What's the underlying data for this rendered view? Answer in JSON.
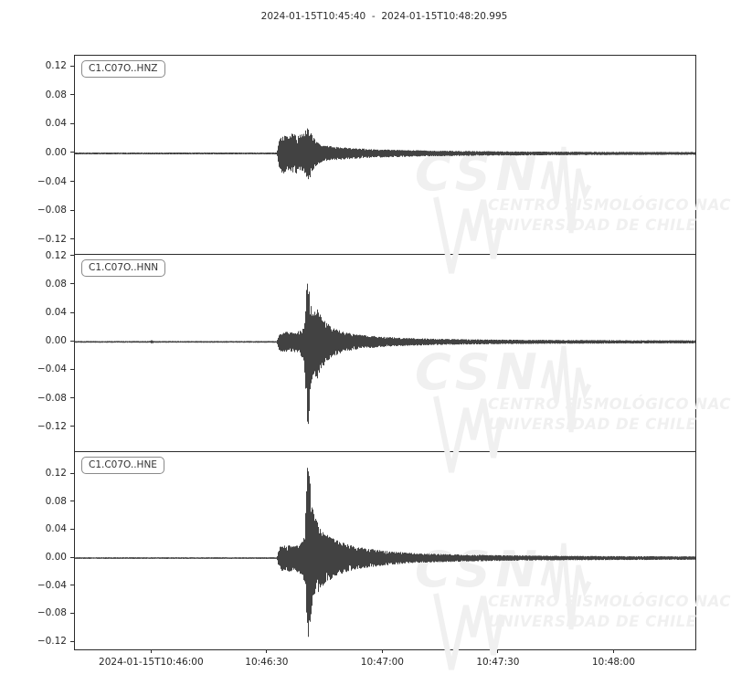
{
  "chart_data": {
    "type": "line",
    "kind": "seismogram-multitrace",
    "title": "2024-01-15T10:45:40  -  2024-01-15T10:48:20.995",
    "time_start": "2024-01-15T10:45:40",
    "time_end": "2024-01-15T10:48:20.995",
    "duration_seconds": 161,
    "trace_color": "#424242",
    "axis_color": "#2b2b2b",
    "grid": false,
    "x_ticks": [
      {
        "t": 20,
        "label": "2024-01-15T10:46:00"
      },
      {
        "t": 50,
        "label": "10:46:30"
      },
      {
        "t": 80,
        "label": "10:47:00"
      },
      {
        "t": 110,
        "label": "10:47:30"
      },
      {
        "t": 140,
        "label": "10:48:00"
      }
    ],
    "y_ticks": [
      {
        "value": 0.12,
        "label": "0.12"
      },
      {
        "value": 0.08,
        "label": "0.08"
      },
      {
        "value": 0.04,
        "label": "0.04"
      },
      {
        "value": 0.0,
        "label": "0.00"
      },
      {
        "value": -0.04,
        "label": "−0.04"
      },
      {
        "value": -0.08,
        "label": "−0.08"
      },
      {
        "value": -0.12,
        "label": "−0.12"
      }
    ],
    "traces": [
      {
        "label": "C1.C07O..HNZ",
        "ylim": [
          -0.1386,
          0.1352
        ],
        "onset_s": 53,
        "peak_amplitude": 0.035,
        "min_amplitude": -0.037,
        "envelope_pos": [
          [
            0,
            0.0013
          ],
          [
            52.5,
            0.0013
          ],
          [
            53.2,
            0.02
          ],
          [
            54,
            0.026
          ],
          [
            55.5,
            0.022
          ],
          [
            56.5,
            0.028
          ],
          [
            57.5,
            0.024
          ],
          [
            58.5,
            0.026
          ],
          [
            59.5,
            0.03
          ],
          [
            60.5,
            0.035
          ],
          [
            61.5,
            0.026
          ],
          [
            62.5,
            0.018
          ],
          [
            63.5,
            0.013
          ],
          [
            65,
            0.011
          ],
          [
            68,
            0.009
          ],
          [
            72,
            0.0075
          ],
          [
            77,
            0.006
          ],
          [
            84,
            0.005
          ],
          [
            92,
            0.004
          ],
          [
            104,
            0.0032
          ],
          [
            120,
            0.0026
          ],
          [
            140,
            0.0022
          ],
          [
            161,
            0.002
          ]
        ],
        "envelope_neg": [
          [
            0,
            0.0013
          ],
          [
            52.5,
            0.0013
          ],
          [
            53.2,
            0.022
          ],
          [
            54,
            0.028
          ],
          [
            55.5,
            0.024
          ],
          [
            56.5,
            0.026
          ],
          [
            57.5,
            0.028
          ],
          [
            58.5,
            0.024
          ],
          [
            59.5,
            0.028
          ],
          [
            60.9,
            0.037
          ],
          [
            61.5,
            0.024
          ],
          [
            62.5,
            0.018
          ],
          [
            63.5,
            0.013
          ],
          [
            65,
            0.011
          ],
          [
            68,
            0.009
          ],
          [
            72,
            0.0075
          ],
          [
            77,
            0.006
          ],
          [
            84,
            0.005
          ],
          [
            92,
            0.004
          ],
          [
            104,
            0.0032
          ],
          [
            120,
            0.0026
          ],
          [
            140,
            0.0022
          ],
          [
            161,
            0.002
          ]
        ]
      },
      {
        "label": "C1.C07O..HNN",
        "ylim": [
          -0.154,
          0.124
        ],
        "onset_s": 53,
        "peak_amplitude": 0.089,
        "min_amplitude": -0.12,
        "envelope_pos": [
          [
            0,
            0.0012
          ],
          [
            19.6,
            0.0012
          ],
          [
            20,
            0.0025
          ],
          [
            20.4,
            0.0012
          ],
          [
            52.5,
            0.0012
          ],
          [
            53.2,
            0.012
          ],
          [
            55,
            0.014
          ],
          [
            57,
            0.013
          ],
          [
            58.5,
            0.016
          ],
          [
            59.6,
            0.025
          ],
          [
            60.4,
            0.0886
          ],
          [
            61,
            0.055
          ],
          [
            61.8,
            0.042
          ],
          [
            62.8,
            0.05
          ],
          [
            63.8,
            0.035
          ],
          [
            65,
            0.028
          ],
          [
            66.5,
            0.022
          ],
          [
            68,
            0.018
          ],
          [
            70,
            0.014
          ],
          [
            72.5,
            0.011
          ],
          [
            75,
            0.0095
          ],
          [
            78,
            0.008
          ],
          [
            82,
            0.0065
          ],
          [
            87,
            0.0055
          ],
          [
            93,
            0.0045
          ],
          [
            100,
            0.0038
          ],
          [
            110,
            0.0032
          ],
          [
            125,
            0.0027
          ],
          [
            145,
            0.0023
          ],
          [
            161,
            0.0022
          ]
        ],
        "envelope_neg": [
          [
            0,
            0.0012
          ],
          [
            19.6,
            0.0012
          ],
          [
            20,
            0.0025
          ],
          [
            20.4,
            0.0012
          ],
          [
            52.5,
            0.0012
          ],
          [
            53.2,
            0.013
          ],
          [
            55,
            0.015
          ],
          [
            57,
            0.014
          ],
          [
            58.5,
            0.018
          ],
          [
            59.6,
            0.03
          ],
          [
            60.5,
            0.12
          ],
          [
            61.2,
            0.065
          ],
          [
            61.8,
            0.048
          ],
          [
            62.8,
            0.052
          ],
          [
            63.8,
            0.038
          ],
          [
            65,
            0.03
          ],
          [
            66.5,
            0.023
          ],
          [
            68,
            0.018
          ],
          [
            70,
            0.014
          ],
          [
            72.5,
            0.011
          ],
          [
            75,
            0.0095
          ],
          [
            78,
            0.008
          ],
          [
            82,
            0.0065
          ],
          [
            87,
            0.0055
          ],
          [
            93,
            0.0045
          ],
          [
            100,
            0.0038
          ],
          [
            110,
            0.0032
          ],
          [
            125,
            0.0027
          ],
          [
            145,
            0.0023
          ],
          [
            161,
            0.0022
          ]
        ]
      },
      {
        "label": "C1.C07O..HNE",
        "ylim": [
          -0.1304,
          0.1522
        ],
        "onset_s": 53,
        "peak_amplitude": 0.141,
        "min_amplitude": -0.115,
        "envelope_pos": [
          [
            0,
            0.0012
          ],
          [
            52.5,
            0.0012
          ],
          [
            53.2,
            0.016
          ],
          [
            55,
            0.019
          ],
          [
            57,
            0.017
          ],
          [
            58.5,
            0.02
          ],
          [
            59.7,
            0.035
          ],
          [
            60.5,
            0.141
          ],
          [
            61.3,
            0.085
          ],
          [
            62,
            0.06
          ],
          [
            63,
            0.05
          ],
          [
            64,
            0.042
          ],
          [
            65.5,
            0.034
          ],
          [
            67,
            0.028
          ],
          [
            69,
            0.023
          ],
          [
            71,
            0.019
          ],
          [
            73.5,
            0.016
          ],
          [
            76,
            0.0135
          ],
          [
            79,
            0.0115
          ],
          [
            82.5,
            0.0095
          ],
          [
            86,
            0.008
          ],
          [
            90,
            0.0068
          ],
          [
            95,
            0.0058
          ],
          [
            101,
            0.005
          ],
          [
            108,
            0.0043
          ],
          [
            116,
            0.0037
          ],
          [
            126,
            0.0032
          ],
          [
            140,
            0.0028
          ],
          [
            161,
            0.0025
          ]
        ],
        "envelope_neg": [
          [
            0,
            0.0012
          ],
          [
            52.5,
            0.0012
          ],
          [
            53.2,
            0.017
          ],
          [
            55,
            0.02
          ],
          [
            57,
            0.018
          ],
          [
            58.5,
            0.022
          ],
          [
            59.7,
            0.04
          ],
          [
            60.7,
            0.115
          ],
          [
            61.4,
            0.07
          ],
          [
            62,
            0.058
          ],
          [
            63,
            0.05
          ],
          [
            64,
            0.042
          ],
          [
            65.5,
            0.034
          ],
          [
            67,
            0.028
          ],
          [
            69,
            0.023
          ],
          [
            71,
            0.019
          ],
          [
            73.5,
            0.016
          ],
          [
            76,
            0.0135
          ],
          [
            79,
            0.0115
          ],
          [
            82.5,
            0.0095
          ],
          [
            86,
            0.008
          ],
          [
            90,
            0.0068
          ],
          [
            95,
            0.0058
          ],
          [
            101,
            0.005
          ],
          [
            108,
            0.0043
          ],
          [
            116,
            0.0037
          ],
          [
            126,
            0.0032
          ],
          [
            140,
            0.0028
          ],
          [
            161,
            0.0025
          ]
        ]
      }
    ],
    "watermark": {
      "logo": "CSN",
      "line1": "CENTRO SISMOLÓGICO NACIONAL",
      "line2": "UNIVERSIDAD DE CHILE",
      "color": "#f0f0f0"
    }
  }
}
